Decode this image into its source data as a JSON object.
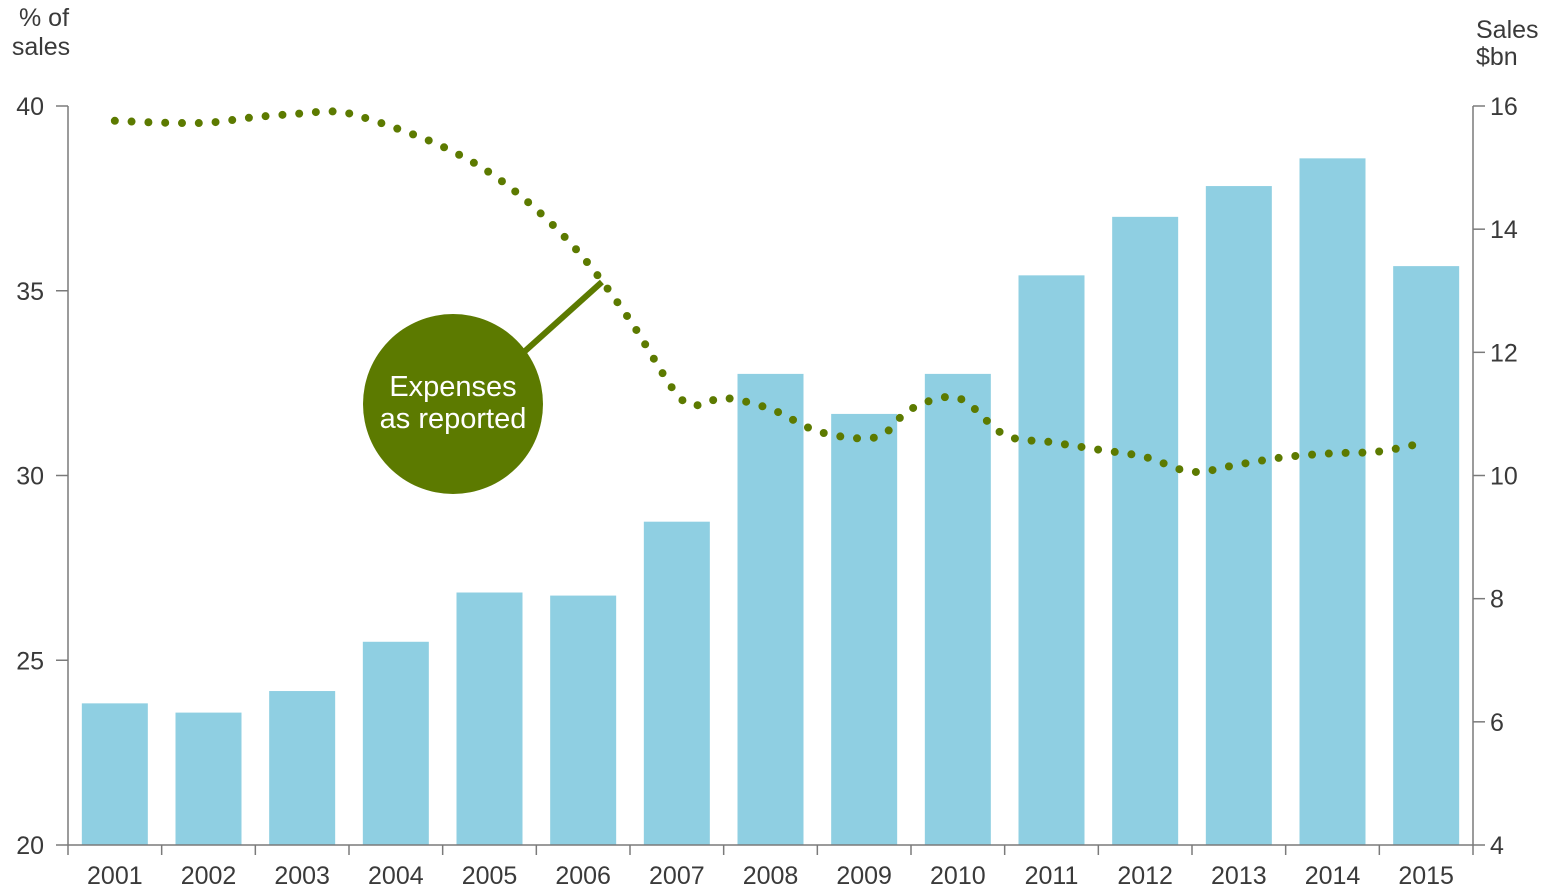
{
  "chart_data": {
    "type": "bar",
    "categories": [
      "2001",
      "2002",
      "2003",
      "2004",
      "2005",
      "2006",
      "2007",
      "2008",
      "2009",
      "2010",
      "2011",
      "2012",
      "2013",
      "2014",
      "2015"
    ],
    "series": [
      {
        "type": "bar",
        "axis": "right",
        "values": [
          6.3,
          6.15,
          6.5,
          7.3,
          8.1,
          8.05,
          9.25,
          11.65,
          11.0,
          11.65,
          13.25,
          14.2,
          14.7,
          15.15,
          13.4
        ],
        "color": "#8fcfe2"
      },
      {
        "type": "line",
        "style": "dotted",
        "axis": "left",
        "x": [
          2001.0,
          2001.5,
          2002.0,
          2002.5,
          2003.0,
          2003.25,
          2003.5,
          2004.0,
          2004.5,
          2005.0,
          2005.5,
          2006.0,
          2006.5,
          2007.0,
          2007.25,
          2007.5,
          2008.0,
          2008.5,
          2009.0,
          2009.25,
          2009.5,
          2010.0,
          2010.5,
          2011.0,
          2011.5,
          2012.0,
          2012.5,
          2013.0,
          2013.5,
          2014.0,
          2014.5,
          2015.0
        ],
        "values": [
          39.6,
          39.55,
          39.55,
          39.7,
          39.8,
          39.85,
          39.8,
          39.4,
          38.9,
          38.2,
          37.2,
          35.9,
          34.2,
          32.2,
          31.9,
          32.1,
          31.8,
          31.2,
          31.0,
          31.2,
          31.8,
          32.1,
          31.1,
          30.9,
          30.7,
          30.5,
          30.1,
          30.3,
          30.5,
          30.6,
          30.65,
          30.9
        ],
        "color": "#5c7a00"
      }
    ],
    "y_left": {
      "label_line1": "% of",
      "label_line2": "sales",
      "min": 20,
      "max": 40,
      "ticks": [
        20,
        25,
        30,
        35,
        40
      ]
    },
    "y_right": {
      "label_line1": "Sales",
      "label_line2": "$bn",
      "min": 4,
      "max": 16,
      "ticks": [
        4,
        6,
        8,
        10,
        12,
        14,
        16
      ]
    },
    "annotation": {
      "line1": "Expenses",
      "line2": "as reported",
      "color": "#5c7a00",
      "points_to_x": 2006.2
    }
  }
}
